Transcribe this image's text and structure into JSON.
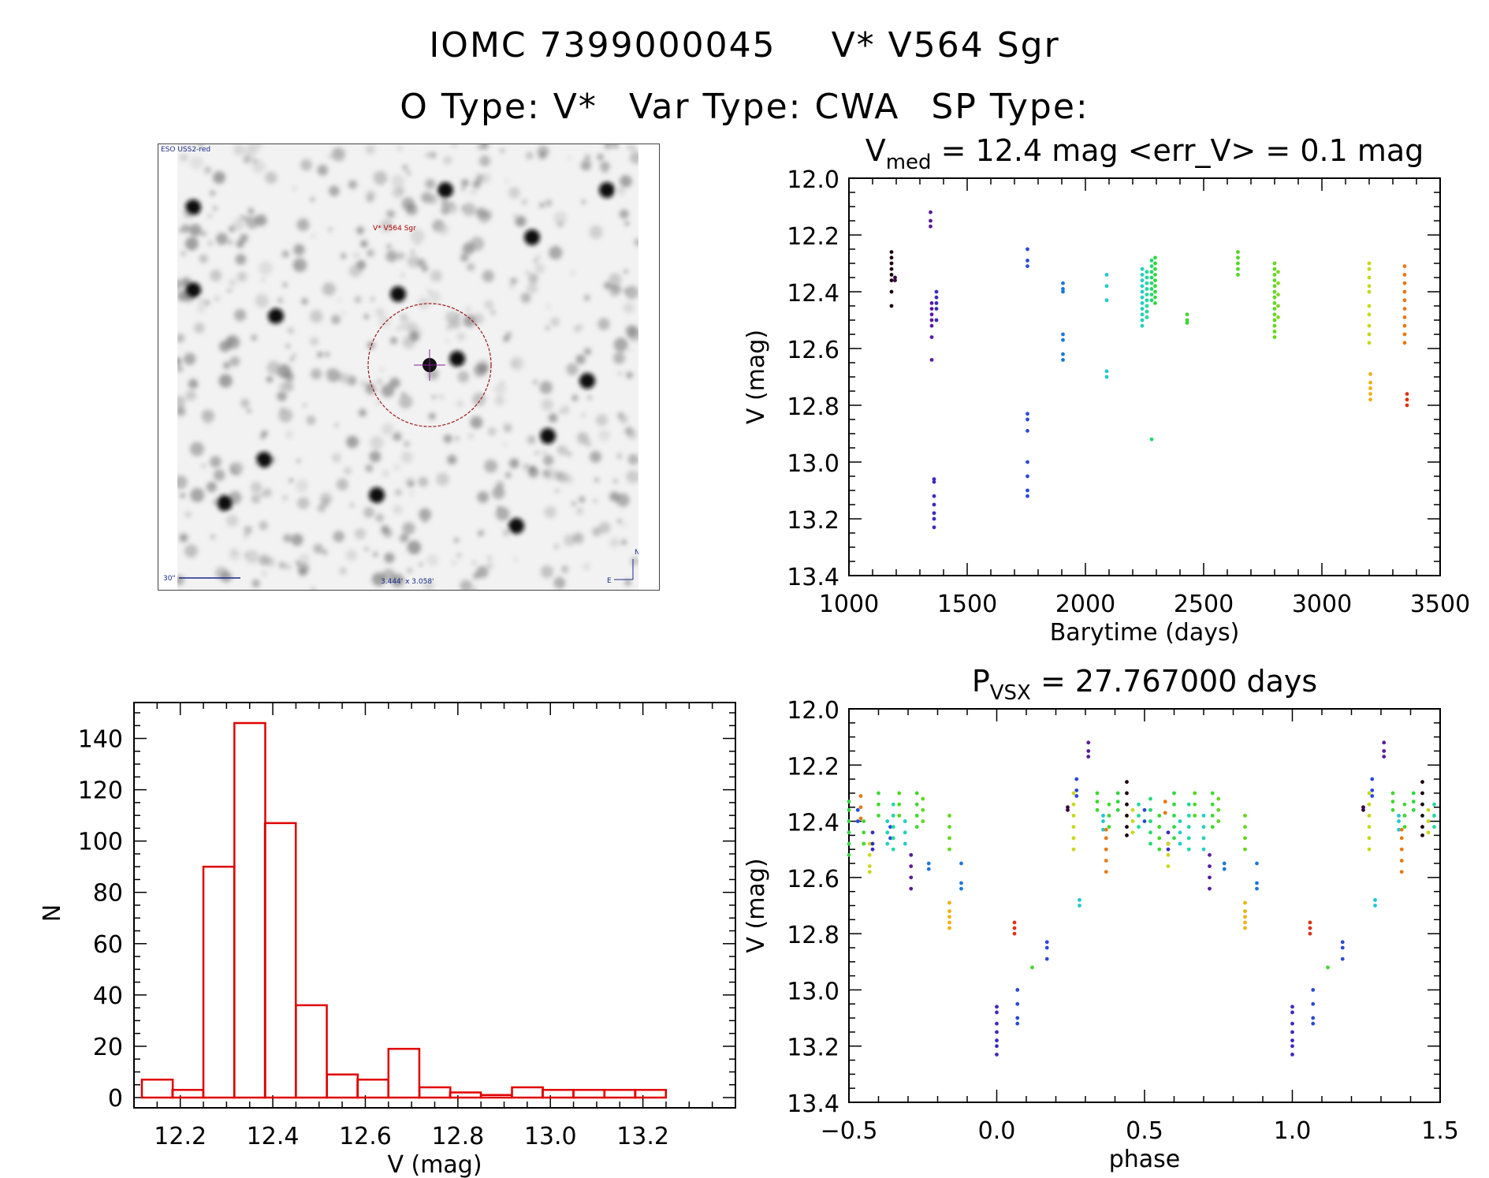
{
  "header": {
    "object_id": "IOMC 7399000045",
    "object_name": "V* V564 Sgr",
    "otype": "O Type: V*",
    "vartype": "Var Type: CWA",
    "sptype": "SP Type:"
  },
  "sky_image": {
    "survey_label": "ESO USS2-red",
    "target_label": "V* V564 Sgr",
    "fov_label": "3.444' x 3.058'",
    "scale_label": "30\"",
    "north_label": "N",
    "east_label": "E"
  },
  "chart_data": [
    {
      "type": "scatter",
      "id": "lightcurve",
      "title_main": "V",
      "title_sub": "med",
      "title_rest": " = 12.4 mag <err_V> = 0.1 mag",
      "xlabel": "Barytime (days)",
      "ylabel": "V (mag)",
      "xlim": [
        1000,
        3500
      ],
      "ylim": [
        12.0,
        13.4
      ],
      "y_inverted": true,
      "xticks": [
        1000,
        1500,
        2000,
        2500,
        3000,
        3500
      ],
      "yticks": [
        12.0,
        12.2,
        12.4,
        12.6,
        12.8,
        13.0,
        13.2,
        13.4
      ],
      "groups": [
        {
          "x": 1180,
          "color": "#1a0010",
          "y": [
            12.26,
            12.28,
            12.3,
            12.32,
            12.34,
            12.36,
            12.4,
            12.45
          ]
        },
        {
          "x": 1195,
          "color": "#3a0040",
          "y": [
            12.35,
            12.36
          ]
        },
        {
          "x": 1345,
          "color": "#5a1a9a",
          "y": [
            12.12,
            12.15,
            12.17
          ]
        },
        {
          "x": 1350,
          "color": "#5a1a9a",
          "y": [
            12.44,
            12.46,
            12.48,
            12.5,
            12.52,
            12.56,
            12.64
          ]
        },
        {
          "x": 1360,
          "color": "#3a2ac0",
          "y": [
            13.06,
            13.07,
            13.12,
            13.15,
            13.18,
            13.2,
            13.23
          ]
        },
        {
          "x": 1370,
          "color": "#3a2ac0",
          "y": [
            12.4,
            12.42,
            12.44,
            12.46,
            12.5
          ]
        },
        {
          "x": 1755,
          "color": "#2a4ad8",
          "y": [
            12.25,
            12.29,
            12.31
          ]
        },
        {
          "x": 1755,
          "color": "#2a4ad8",
          "y": [
            12.83,
            12.85,
            12.89,
            13.0,
            13.05,
            13.1,
            13.12
          ]
        },
        {
          "x": 1905,
          "color": "#1a78d8",
          "y": [
            12.37,
            12.39,
            12.4,
            12.55,
            12.57,
            12.62,
            12.64
          ]
        },
        {
          "x": 2090,
          "color": "#20c8d0",
          "y": [
            12.34,
            12.38,
            12.43,
            12.68,
            12.7
          ]
        },
        {
          "x": 2240,
          "color": "#20d0c0",
          "y": [
            12.32,
            12.34,
            12.36,
            12.38,
            12.4,
            12.42,
            12.44,
            12.46,
            12.48,
            12.5,
            12.52
          ]
        },
        {
          "x": 2260,
          "color": "#20d8a0",
          "y": [
            12.33,
            12.35,
            12.37,
            12.39,
            12.41,
            12.43,
            12.45,
            12.47,
            12.49
          ]
        },
        {
          "x": 2280,
          "color": "#20d870",
          "y": [
            12.29,
            12.31,
            12.33,
            12.35,
            12.37,
            12.39,
            12.41,
            12.43,
            12.92
          ]
        },
        {
          "x": 2295,
          "color": "#30d840",
          "y": [
            12.28,
            12.3,
            12.32,
            12.34,
            12.36,
            12.38,
            12.4,
            12.42,
            12.44
          ]
        },
        {
          "x": 2430,
          "color": "#40d830",
          "y": [
            12.48,
            12.5,
            12.51
          ]
        },
        {
          "x": 2645,
          "color": "#50d820",
          "y": [
            12.26,
            12.28,
            12.3,
            12.32,
            12.34
          ]
        },
        {
          "x": 2800,
          "color": "#60d820",
          "y": [
            12.3,
            12.32,
            12.34,
            12.36,
            12.38,
            12.4,
            12.42,
            12.44,
            12.46,
            12.48,
            12.5,
            12.52,
            12.54,
            12.56
          ]
        },
        {
          "x": 2815,
          "color": "#80d820",
          "y": [
            12.33,
            12.37,
            12.41,
            12.45,
            12.49
          ]
        },
        {
          "x": 3200,
          "color": "#c8d818",
          "y": [
            12.3,
            12.32,
            12.35,
            12.38,
            12.4,
            12.45,
            12.48,
            12.52,
            12.55,
            12.58
          ]
        },
        {
          "x": 3205,
          "color": "#f0b010",
          "y": [
            12.69,
            12.72,
            12.74,
            12.76,
            12.78
          ]
        },
        {
          "x": 3350,
          "color": "#e87810",
          "y": [
            12.31,
            12.34,
            12.37,
            12.4,
            12.43,
            12.46,
            12.49,
            12.52,
            12.55,
            12.58
          ]
        },
        {
          "x": 3360,
          "color": "#e03010",
          "y": [
            12.76,
            12.78,
            12.8
          ]
        }
      ]
    },
    {
      "type": "bar",
      "id": "histogram",
      "title": "",
      "xlabel": "V (mag)",
      "ylabel": "N",
      "xlim": [
        12.1,
        13.4
      ],
      "ylim": [
        0,
        150
      ],
      "xticks": [
        12.2,
        12.4,
        12.6,
        12.8,
        13.0,
        13.2
      ],
      "yticks": [
        0,
        20,
        40,
        60,
        80,
        100,
        120,
        140
      ],
      "bin_width": 0.0667,
      "bin_starts": [
        12.117,
        12.183,
        12.25,
        12.317,
        12.383,
        12.45,
        12.517,
        12.583,
        12.65,
        12.717,
        12.783,
        12.85,
        12.917,
        12.983,
        13.05,
        13.117,
        13.183
      ],
      "values": [
        7,
        3,
        90,
        146,
        107,
        36,
        9,
        7,
        19,
        4,
        2,
        1,
        4,
        3,
        3,
        3,
        3
      ],
      "bar_color": "#e00000"
    },
    {
      "type": "scatter",
      "id": "phased",
      "title_main": "P",
      "title_sub": "VSX",
      "title_rest": " = 27.767000 days",
      "xlabel": "phase",
      "ylabel": "V (mag)",
      "xlim": [
        -0.5,
        1.5
      ],
      "ylim": [
        12.0,
        13.4
      ],
      "y_inverted": true,
      "xticks": [
        -0.5,
        0.0,
        0.5,
        1.0,
        1.5
      ],
      "yticks": [
        12.0,
        12.2,
        12.4,
        12.6,
        12.8,
        13.0,
        13.2,
        13.4
      ],
      "groups": [
        {
          "x": 0.0,
          "color": "#3a2ac0",
          "y": [
            13.06,
            13.08,
            13.12,
            13.15,
            13.18,
            13.2,
            13.23
          ]
        },
        {
          "x": 0.06,
          "color": "#e03010",
          "y": [
            12.76,
            12.78,
            12.8
          ]
        },
        {
          "x": 0.07,
          "color": "#2a4ad8",
          "y": [
            13.0,
            13.05,
            13.1,
            13.12
          ]
        },
        {
          "x": 0.12,
          "color": "#40d830",
          "y": [
            12.92
          ]
        },
        {
          "x": 0.17,
          "color": "#2a4ad8",
          "y": [
            12.83,
            12.85,
            12.89
          ]
        },
        {
          "x": 0.24,
          "color": "#3a0040",
          "y": [
            12.35,
            12.36
          ]
        },
        {
          "x": 0.26,
          "color": "#c8d818",
          "y": [
            12.3,
            12.34,
            12.38,
            12.42,
            12.46,
            12.5
          ]
        },
        {
          "x": 0.27,
          "color": "#2a4ad8",
          "y": [
            12.25,
            12.29,
            12.31
          ]
        },
        {
          "x": 0.28,
          "color": "#20c8d0",
          "y": [
            12.68,
            12.7
          ]
        },
        {
          "x": 0.31,
          "color": "#5a1a9a",
          "y": [
            12.12,
            12.15,
            12.17
          ]
        },
        {
          "x": 0.34,
          "color": "#40d830",
          "y": [
            12.3,
            12.33,
            12.36
          ]
        },
        {
          "x": 0.36,
          "color": "#20c8d0",
          "y": [
            12.38,
            12.4,
            12.43
          ]
        },
        {
          "x": 0.37,
          "color": "#e87810",
          "y": [
            12.43,
            12.46,
            12.5,
            12.54,
            12.58
          ]
        },
        {
          "x": 0.38,
          "color": "#40d830",
          "y": [
            12.34,
            12.38,
            12.42
          ]
        },
        {
          "x": 0.41,
          "color": "#30d840",
          "y": [
            12.3,
            12.33,
            12.36
          ]
        },
        {
          "x": 0.44,
          "color": "#1a0010",
          "y": [
            12.26,
            12.3,
            12.34,
            12.38,
            12.42,
            12.45
          ]
        },
        {
          "x": 0.46,
          "color": "#c8d818",
          "y": [
            12.36,
            12.4,
            12.44
          ]
        },
        {
          "x": 0.48,
          "color": "#20d8a0",
          "y": [
            12.34,
            12.38,
            12.42
          ]
        },
        {
          "x": 0.5,
          "color": "#2a4ad8",
          "y": [
            12.36,
            12.4
          ]
        },
        {
          "x": 0.52,
          "color": "#20d870",
          "y": [
            12.32,
            12.36,
            12.4,
            12.44,
            12.48
          ]
        },
        {
          "x": 0.55,
          "color": "#40d830",
          "y": [
            12.38,
            12.42,
            12.46,
            12.5
          ]
        },
        {
          "x": 0.57,
          "color": "#e87810",
          "y": [
            12.33,
            12.37
          ]
        },
        {
          "x": 0.58,
          "color": "#3a2ac0",
          "y": [
            12.44,
            12.48,
            12.5
          ]
        },
        {
          "x": 0.58,
          "color": "#c8d818",
          "y": [
            12.48,
            12.52,
            12.56
          ]
        },
        {
          "x": 0.6,
          "color": "#30d840",
          "y": [
            12.3,
            12.34,
            12.38,
            12.42,
            12.46
          ]
        },
        {
          "x": 0.62,
          "color": "#20d0c0",
          "y": [
            12.4,
            12.44,
            12.48
          ]
        },
        {
          "x": 0.65,
          "color": "#20d8a0",
          "y": [
            12.34,
            12.38,
            12.42,
            12.46,
            12.5
          ]
        },
        {
          "x": 0.67,
          "color": "#50d820",
          "y": [
            12.3,
            12.34,
            12.38
          ]
        },
        {
          "x": 0.7,
          "color": "#20d0c0",
          "y": [
            12.38,
            12.42,
            12.46,
            12.5
          ]
        },
        {
          "x": 0.72,
          "color": "#5a1a9a",
          "y": [
            12.52,
            12.56,
            12.6,
            12.64
          ]
        },
        {
          "x": 0.73,
          "color": "#40d830",
          "y": [
            12.3,
            12.34,
            12.38,
            12.42
          ]
        },
        {
          "x": 0.75,
          "color": "#60d820",
          "y": [
            12.32,
            12.36,
            12.4
          ]
        },
        {
          "x": 0.77,
          "color": "#1a78d8",
          "y": [
            12.55,
            12.57
          ]
        },
        {
          "x": 0.84,
          "color": "#60d820",
          "y": [
            12.38,
            12.42,
            12.46,
            12.5
          ]
        },
        {
          "x": 0.84,
          "color": "#f0b010",
          "y": [
            12.69,
            12.72,
            12.74,
            12.76,
            12.78
          ]
        },
        {
          "x": 0.88,
          "color": "#1a78d8",
          "y": [
            12.55,
            12.62,
            12.64
          ]
        },
        {
          "x": -0.5,
          "color": "#30d840",
          "y": [
            12.33,
            12.36,
            12.4,
            12.44,
            12.48,
            12.52
          ]
        },
        {
          "x": -0.47,
          "color": "#2a4ad8",
          "y": [
            12.36,
            12.4
          ]
        },
        {
          "x": -0.46,
          "color": "#e87810",
          "y": [
            12.31,
            12.35,
            12.39
          ]
        },
        {
          "x": -0.45,
          "color": "#40d830",
          "y": [
            12.4,
            12.44,
            12.48
          ]
        },
        {
          "x": -0.43,
          "color": "#c8d818",
          "y": [
            12.48,
            12.52,
            12.56,
            12.58
          ]
        },
        {
          "x": -0.42,
          "color": "#3a2ac0",
          "y": [
            12.44,
            12.48,
            12.5
          ]
        },
        {
          "x": -0.4,
          "color": "#40d830",
          "y": [
            12.3,
            12.34,
            12.38
          ]
        },
        {
          "x": -0.37,
          "color": "#20d0c0",
          "y": [
            12.4,
            12.44,
            12.48
          ]
        },
        {
          "x": -0.36,
          "color": "#2a4ad8",
          "y": [
            12.42,
            12.46
          ]
        },
        {
          "x": -0.35,
          "color": "#20d8a0",
          "y": [
            12.34,
            12.38,
            12.42,
            12.46,
            12.5
          ]
        },
        {
          "x": -0.33,
          "color": "#50d820",
          "y": [
            12.3,
            12.34,
            12.38
          ]
        },
        {
          "x": -0.31,
          "color": "#20d0c0",
          "y": [
            12.4,
            12.44,
            12.48
          ]
        },
        {
          "x": -0.29,
          "color": "#5a1a9a",
          "y": [
            12.52,
            12.56,
            12.6,
            12.64
          ]
        },
        {
          "x": -0.27,
          "color": "#40d830",
          "y": [
            12.3,
            12.34,
            12.38,
            12.42
          ]
        },
        {
          "x": -0.25,
          "color": "#60d820",
          "y": [
            12.32,
            12.36,
            12.4
          ]
        },
        {
          "x": -0.23,
          "color": "#1a78d8",
          "y": [
            12.55,
            12.57
          ]
        },
        {
          "x": -0.16,
          "color": "#60d820",
          "y": [
            12.38,
            12.42,
            12.46,
            12.5
          ]
        },
        {
          "x": -0.16,
          "color": "#f0b010",
          "y": [
            12.69,
            12.72,
            12.74,
            12.76,
            12.78
          ]
        },
        {
          "x": -0.12,
          "color": "#1a78d8",
          "y": [
            12.55,
            12.62,
            12.64
          ]
        },
        {
          "x": 1.0,
          "color": "#3a2ac0",
          "y": [
            13.06,
            13.08,
            13.12,
            13.15,
            13.18,
            13.2,
            13.23
          ]
        },
        {
          "x": 1.06,
          "color": "#e03010",
          "y": [
            12.76,
            12.78,
            12.8
          ]
        },
        {
          "x": 1.07,
          "color": "#2a4ad8",
          "y": [
            13.0,
            13.05,
            13.1,
            13.12
          ]
        },
        {
          "x": 1.12,
          "color": "#40d830",
          "y": [
            12.92
          ]
        },
        {
          "x": 1.17,
          "color": "#2a4ad8",
          "y": [
            12.83,
            12.85,
            12.89
          ]
        },
        {
          "x": 1.24,
          "color": "#3a0040",
          "y": [
            12.35,
            12.36
          ]
        },
        {
          "x": 1.26,
          "color": "#c8d818",
          "y": [
            12.3,
            12.34,
            12.38,
            12.42,
            12.46,
            12.5
          ]
        },
        {
          "x": 1.27,
          "color": "#2a4ad8",
          "y": [
            12.25,
            12.29,
            12.31
          ]
        },
        {
          "x": 1.28,
          "color": "#20c8d0",
          "y": [
            12.68,
            12.7
          ]
        },
        {
          "x": 1.31,
          "color": "#5a1a9a",
          "y": [
            12.12,
            12.15,
            12.17
          ]
        },
        {
          "x": 1.34,
          "color": "#40d830",
          "y": [
            12.3,
            12.33,
            12.36
          ]
        },
        {
          "x": 1.36,
          "color": "#20c8d0",
          "y": [
            12.38,
            12.4,
            12.43
          ]
        },
        {
          "x": 1.37,
          "color": "#e87810",
          "y": [
            12.43,
            12.46,
            12.5,
            12.54,
            12.58
          ]
        },
        {
          "x": 1.38,
          "color": "#40d830",
          "y": [
            12.34,
            12.38,
            12.42
          ]
        },
        {
          "x": 1.41,
          "color": "#30d840",
          "y": [
            12.3,
            12.33,
            12.36
          ]
        },
        {
          "x": 1.44,
          "color": "#1a0010",
          "y": [
            12.26,
            12.3,
            12.34,
            12.38,
            12.42,
            12.45
          ]
        },
        {
          "x": 1.46,
          "color": "#c8d818",
          "y": [
            12.36,
            12.4,
            12.44
          ]
        },
        {
          "x": 1.48,
          "color": "#20d8a0",
          "y": [
            12.34,
            12.38,
            12.42
          ]
        }
      ]
    }
  ]
}
